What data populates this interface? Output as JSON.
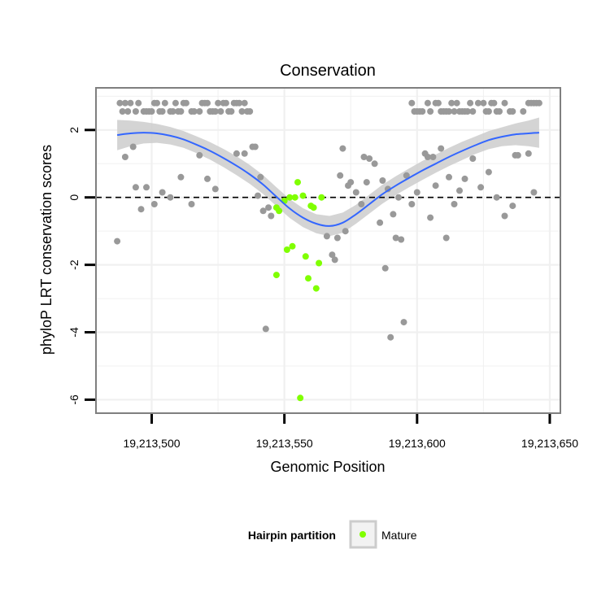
{
  "chart_data": {
    "type": "scatter",
    "title": "Conservation",
    "xlabel": "Genomic Position",
    "ylabel": "phyloP LRT conservation scores",
    "xlim": [
      19213479,
      19213654
    ],
    "ylim": [
      -6.4,
      3.25
    ],
    "x_ticks": [
      19213500,
      19213550,
      19213600,
      19213650
    ],
    "x_tick_labels": [
      "19,213,500",
      "19,213,550",
      "19,213,600",
      "19,213,650"
    ],
    "y_ticks": [
      2,
      0,
      -2,
      -4,
      -6
    ],
    "y_tick_labels": [
      "2",
      "0",
      "-2",
      "-4",
      "-6"
    ],
    "reference_line": {
      "y": 0,
      "style": "dashed"
    },
    "colors": {
      "other": "#999999",
      "mature": "#80ff00",
      "smooth": "#3366ff",
      "band": "#cccccc",
      "panel_border": "#7f7f7f",
      "grid": "#f0f0f0"
    },
    "legend": {
      "title": "Hairpin partition",
      "entries": [
        "Mature"
      ],
      "position": "bottom"
    },
    "series": [
      {
        "name": "Other",
        "points": [
          [
            19213488,
            2.8
          ],
          [
            19213489,
            2.55
          ],
          [
            19213490,
            2.8
          ],
          [
            19213491,
            2.55
          ],
          [
            19213492,
            2.8
          ],
          [
            19213494,
            2.55
          ],
          [
            19213495,
            2.8
          ],
          [
            19213497,
            2.55
          ],
          [
            19213498,
            2.55
          ],
          [
            19213499,
            2.55
          ],
          [
            19213500,
            2.55
          ],
          [
            19213501,
            2.8
          ],
          [
            19213502,
            2.8
          ],
          [
            19213503,
            2.55
          ],
          [
            19213504,
            2.55
          ],
          [
            19213505,
            2.8
          ],
          [
            19213507,
            2.55
          ],
          [
            19213508,
            2.55
          ],
          [
            19213509,
            2.8
          ],
          [
            19213510,
            2.55
          ],
          [
            19213511,
            2.55
          ],
          [
            19213512,
            2.8
          ],
          [
            19213513,
            2.8
          ],
          [
            19213515,
            2.55
          ],
          [
            19213516,
            2.55
          ],
          [
            19213518,
            2.55
          ],
          [
            19213519,
            2.8
          ],
          [
            19213520,
            2.8
          ],
          [
            19213521,
            2.8
          ],
          [
            19213522,
            2.55
          ],
          [
            19213523,
            2.55
          ],
          [
            19213524,
            2.55
          ],
          [
            19213525,
            2.8
          ],
          [
            19213526,
            2.55
          ],
          [
            19213527,
            2.8
          ],
          [
            19213528,
            2.8
          ],
          [
            19213529,
            2.55
          ],
          [
            19213530,
            2.55
          ],
          [
            19213531,
            2.8
          ],
          [
            19213532,
            2.8
          ],
          [
            19213533,
            2.8
          ],
          [
            19213534,
            2.55
          ],
          [
            19213535,
            2.8
          ],
          [
            19213536,
            2.55
          ],
          [
            19213537,
            2.55
          ],
          [
            19213598,
            2.8
          ],
          [
            19213599,
            2.55
          ],
          [
            19213600,
            2.55
          ],
          [
            19213601,
            2.55
          ],
          [
            19213602,
            2.55
          ],
          [
            19213604,
            2.8
          ],
          [
            19213605,
            2.55
          ],
          [
            19213607,
            2.8
          ],
          [
            19213608,
            2.8
          ],
          [
            19213609,
            2.55
          ],
          [
            19213610,
            2.55
          ],
          [
            19213611,
            2.55
          ],
          [
            19213612,
            2.55
          ],
          [
            19213613,
            2.8
          ],
          [
            19213614,
            2.55
          ],
          [
            19213615,
            2.8
          ],
          [
            19213616,
            2.55
          ],
          [
            19213617,
            2.55
          ],
          [
            19213618,
            2.55
          ],
          [
            19213619,
            2.55
          ],
          [
            19213620,
            2.8
          ],
          [
            19213621,
            2.55
          ],
          [
            19213623,
            2.8
          ],
          [
            19213625,
            2.8
          ],
          [
            19213626,
            2.55
          ],
          [
            19213627,
            2.55
          ],
          [
            19213628,
            2.8
          ],
          [
            19213629,
            2.8
          ],
          [
            19213630,
            2.55
          ],
          [
            19213631,
            2.55
          ],
          [
            19213633,
            2.8
          ],
          [
            19213635,
            2.55
          ],
          [
            19213636,
            2.55
          ],
          [
            19213640,
            2.55
          ],
          [
            19213642,
            2.8
          ],
          [
            19213643,
            2.8
          ],
          [
            19213644,
            2.8
          ],
          [
            19213645,
            2.8
          ],
          [
            19213646,
            2.8
          ],
          [
            19213487,
            -1.3
          ],
          [
            19213490,
            1.2
          ],
          [
            19213493,
            1.5
          ],
          [
            19213494,
            0.3
          ],
          [
            19213496,
            -0.35
          ],
          [
            19213498,
            0.3
          ],
          [
            19213501,
            -0.2
          ],
          [
            19213504,
            0.15
          ],
          [
            19213507,
            0.0
          ],
          [
            19213511,
            0.6
          ],
          [
            19213515,
            -0.2
          ],
          [
            19213518,
            1.25
          ],
          [
            19213521,
            0.55
          ],
          [
            19213524,
            0.25
          ],
          [
            19213532,
            1.3
          ],
          [
            19213535,
            1.3
          ],
          [
            19213538,
            1.5
          ],
          [
            19213539,
            1.5
          ],
          [
            19213540,
            0.05
          ],
          [
            19213541,
            0.6
          ],
          [
            19213542,
            -0.4
          ],
          [
            19213543,
            -3.9
          ],
          [
            19213544,
            -0.3
          ],
          [
            19213545,
            -0.55
          ],
          [
            19213566,
            -1.15
          ],
          [
            19213568,
            -1.7
          ],
          [
            19213569,
            -1.85
          ],
          [
            19213570,
            -1.2
          ],
          [
            19213571,
            0.65
          ],
          [
            19213572,
            1.45
          ],
          [
            19213573,
            -1.0
          ],
          [
            19213574,
            0.35
          ],
          [
            19213575,
            0.45
          ],
          [
            19213577,
            0.15
          ],
          [
            19213579,
            -0.2
          ],
          [
            19213580,
            1.2
          ],
          [
            19213581,
            0.45
          ],
          [
            19213582,
            1.15
          ],
          [
            19213584,
            1.0
          ],
          [
            19213586,
            -0.75
          ],
          [
            19213587,
            0.5
          ],
          [
            19213588,
            -2.1
          ],
          [
            19213589,
            0.25
          ],
          [
            19213590,
            -4.15
          ],
          [
            19213591,
            -0.5
          ],
          [
            19213592,
            -1.2
          ],
          [
            19213593,
            0.0
          ],
          [
            19213594,
            -1.25
          ],
          [
            19213595,
            -3.7
          ],
          [
            19213596,
            0.65
          ],
          [
            19213598,
            -0.2
          ],
          [
            19213600,
            0.15
          ],
          [
            19213603,
            1.3
          ],
          [
            19213604,
            1.2
          ],
          [
            19213605,
            -0.6
          ],
          [
            19213606,
            1.2
          ],
          [
            19213607,
            0.35
          ],
          [
            19213609,
            1.45
          ],
          [
            19213611,
            -1.2
          ],
          [
            19213612,
            0.6
          ],
          [
            19213614,
            -0.2
          ],
          [
            19213616,
            0.2
          ],
          [
            19213618,
            0.55
          ],
          [
            19213621,
            1.15
          ],
          [
            19213624,
            0.3
          ],
          [
            19213627,
            0.75
          ],
          [
            19213630,
            0.0
          ],
          [
            19213633,
            -0.55
          ],
          [
            19213636,
            -0.25
          ],
          [
            19213637,
            1.25
          ],
          [
            19213638,
            1.25
          ],
          [
            19213642,
            1.3
          ],
          [
            19213644,
            0.15
          ]
        ]
      },
      {
        "name": "Mature",
        "points": [
          [
            19213547,
            -0.3
          ],
          [
            19213547,
            -2.3
          ],
          [
            19213548,
            -0.4
          ],
          [
            19213550,
            -0.1
          ],
          [
            19213551,
            -1.55
          ],
          [
            19213552,
            0.0
          ],
          [
            19213553,
            -1.45
          ],
          [
            19213554,
            0.0
          ],
          [
            19213555,
            0.45
          ],
          [
            19213556,
            -5.95
          ],
          [
            19213557,
            0.05
          ],
          [
            19213558,
            -1.75
          ],
          [
            19213559,
            -2.4
          ],
          [
            19213560,
            -0.25
          ],
          [
            19213561,
            -0.3
          ],
          [
            19213562,
            -2.7
          ],
          [
            19213563,
            -1.95
          ],
          [
            19213564,
            0.0
          ]
        ]
      }
    ],
    "smooth": {
      "x": [
        19213487,
        19213492,
        19213497,
        19213502,
        19213507,
        19213512,
        19213517,
        19213522,
        19213527,
        19213532,
        19213537,
        19213542,
        19213547,
        19213552,
        19213557,
        19213562,
        19213567,
        19213572,
        19213577,
        19213582,
        19213587,
        19213592,
        19213597,
        19213602,
        19213607,
        19213612,
        19213617,
        19213622,
        19213627,
        19213632,
        19213637,
        19213642,
        19213646
      ],
      "y": [
        1.85,
        1.9,
        1.92,
        1.9,
        1.83,
        1.72,
        1.56,
        1.38,
        1.17,
        0.94,
        0.68,
        0.38,
        0.02,
        -0.33,
        -0.6,
        -0.78,
        -0.85,
        -0.75,
        -0.5,
        -0.2,
        0.1,
        0.35,
        0.58,
        0.8,
        1.0,
        1.2,
        1.38,
        1.55,
        1.7,
        1.8,
        1.87,
        1.9,
        1.92
      ],
      "ci_half_width": [
        0.45,
        0.38,
        0.32,
        0.28,
        0.26,
        0.25,
        0.25,
        0.26,
        0.27,
        0.28,
        0.28,
        0.28,
        0.28,
        0.28,
        0.28,
        0.28,
        0.3,
        0.3,
        0.28,
        0.28,
        0.28,
        0.28,
        0.28,
        0.28,
        0.27,
        0.27,
        0.27,
        0.26,
        0.27,
        0.28,
        0.32,
        0.38,
        0.45
      ]
    }
  }
}
